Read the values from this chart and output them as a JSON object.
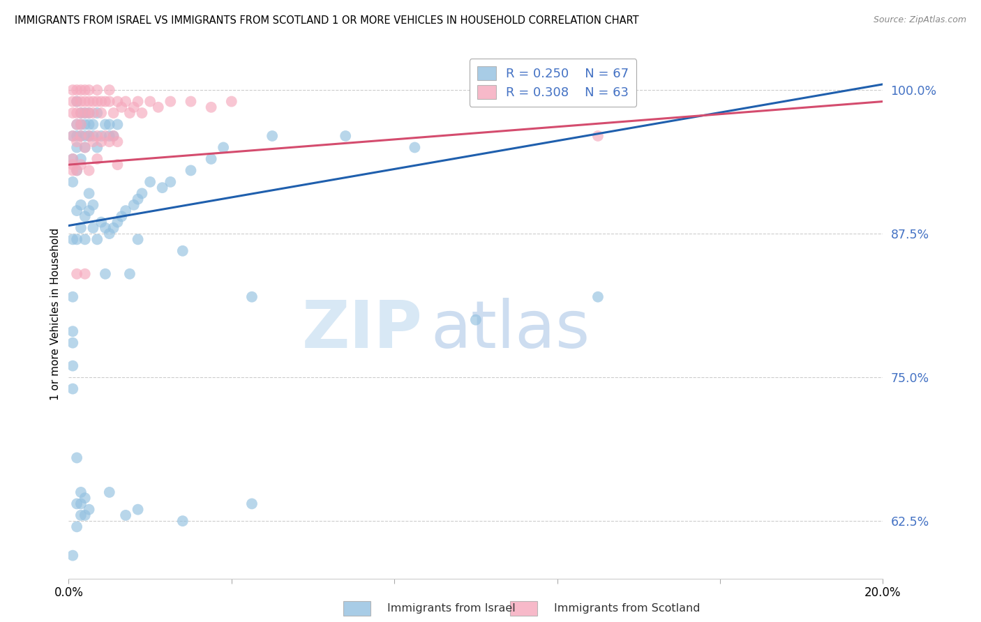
{
  "title": "IMMIGRANTS FROM ISRAEL VS IMMIGRANTS FROM SCOTLAND 1 OR MORE VEHICLES IN HOUSEHOLD CORRELATION CHART",
  "source": "Source: ZipAtlas.com",
  "ylabel": "1 or more Vehicles in Household",
  "xlim": [
    0.0,
    0.2
  ],
  "ylim": [
    0.575,
    1.035
  ],
  "y_ticks": [
    0.625,
    0.75,
    0.875,
    1.0
  ],
  "y_tick_labels": [
    "62.5%",
    "75.0%",
    "87.5%",
    "100.0%"
  ],
  "legend_israel": "Immigrants from Israel",
  "legend_scotland": "Immigrants from Scotland",
  "R_israel": 0.25,
  "N_israel": 67,
  "R_scotland": 0.308,
  "N_scotland": 63,
  "color_israel": "#92C0E0",
  "color_scotland": "#F5A8BC",
  "trendline_color_israel": "#1F5FAD",
  "trendline_color_scotland": "#D44C6E",
  "israel_x": [
    0.001,
    0.001,
    0.001,
    0.001,
    0.002,
    0.002,
    0.002,
    0.002,
    0.002,
    0.003,
    0.003,
    0.003,
    0.003,
    0.004,
    0.004,
    0.004,
    0.004,
    0.005,
    0.005,
    0.005,
    0.006,
    0.006,
    0.007,
    0.007,
    0.008,
    0.009,
    0.01,
    0.01,
    0.011,
    0.012,
    0.002,
    0.003,
    0.004,
    0.005,
    0.006,
    0.002,
    0.003,
    0.004,
    0.005,
    0.006,
    0.007,
    0.008,
    0.009,
    0.01,
    0.011,
    0.012,
    0.013,
    0.014,
    0.016,
    0.017,
    0.018,
    0.02,
    0.023,
    0.025,
    0.03,
    0.035,
    0.038,
    0.05,
    0.068,
    0.085,
    0.009,
    0.015,
    0.017,
    0.028,
    0.045,
    0.13,
    0.1
  ],
  "israel_y": [
    0.96,
    0.94,
    0.92,
    0.87,
    0.99,
    0.97,
    0.96,
    0.95,
    0.93,
    0.98,
    0.97,
    0.96,
    0.94,
    0.98,
    0.97,
    0.96,
    0.95,
    0.98,
    0.97,
    0.96,
    0.97,
    0.96,
    0.98,
    0.95,
    0.96,
    0.97,
    0.97,
    0.96,
    0.96,
    0.97,
    0.895,
    0.9,
    0.89,
    0.91,
    0.9,
    0.87,
    0.88,
    0.87,
    0.895,
    0.88,
    0.87,
    0.885,
    0.88,
    0.875,
    0.88,
    0.885,
    0.89,
    0.895,
    0.9,
    0.905,
    0.91,
    0.92,
    0.915,
    0.92,
    0.93,
    0.94,
    0.95,
    0.96,
    0.96,
    0.95,
    0.84,
    0.84,
    0.87,
    0.86,
    0.82,
    0.82,
    0.8
  ],
  "israel_y_low": [
    0.82,
    0.79,
    0.78,
    0.76,
    0.74,
    0.68,
    0.64,
    0.62,
    0.595,
    0.63,
    0.64,
    0.65,
    0.63,
    0.645,
    0.635,
    0.65,
    0.63,
    0.635,
    0.625,
    0.64
  ],
  "israel_x_low": [
    0.001,
    0.001,
    0.001,
    0.001,
    0.001,
    0.002,
    0.002,
    0.002,
    0.001,
    0.003,
    0.003,
    0.003,
    0.004,
    0.004,
    0.005,
    0.01,
    0.014,
    0.017,
    0.028,
    0.045
  ],
  "scotland_x": [
    0.001,
    0.001,
    0.001,
    0.002,
    0.002,
    0.002,
    0.002,
    0.003,
    0.003,
    0.003,
    0.003,
    0.004,
    0.004,
    0.004,
    0.005,
    0.005,
    0.005,
    0.006,
    0.006,
    0.007,
    0.007,
    0.008,
    0.008,
    0.009,
    0.01,
    0.01,
    0.011,
    0.012,
    0.013,
    0.014,
    0.015,
    0.016,
    0.017,
    0.018,
    0.02,
    0.022,
    0.025,
    0.03,
    0.035,
    0.04,
    0.001,
    0.002,
    0.003,
    0.004,
    0.005,
    0.006,
    0.007,
    0.008,
    0.009,
    0.01,
    0.011,
    0.012,
    0.001,
    0.001,
    0.001,
    0.002,
    0.003,
    0.005,
    0.007,
    0.012,
    0.002,
    0.004,
    0.13
  ],
  "scotland_y": [
    1.0,
    0.99,
    0.98,
    1.0,
    0.99,
    0.98,
    0.97,
    1.0,
    0.99,
    0.98,
    0.97,
    1.0,
    0.99,
    0.98,
    1.0,
    0.99,
    0.98,
    0.99,
    0.98,
    1.0,
    0.99,
    0.99,
    0.98,
    0.99,
    1.0,
    0.99,
    0.98,
    0.99,
    0.985,
    0.99,
    0.98,
    0.985,
    0.99,
    0.98,
    0.99,
    0.985,
    0.99,
    0.99,
    0.985,
    0.99,
    0.96,
    0.955,
    0.96,
    0.95,
    0.96,
    0.955,
    0.96,
    0.955,
    0.96,
    0.955,
    0.96,
    0.955,
    0.94,
    0.93,
    0.935,
    0.93,
    0.935,
    0.93,
    0.94,
    0.935,
    0.84,
    0.84,
    0.96
  ],
  "trendline_israel_x0": 0.0,
  "trendline_israel_y0": 0.882,
  "trendline_israel_x1": 0.2,
  "trendline_israel_y1": 1.005,
  "trendline_scotland_x0": 0.0,
  "trendline_scotland_y0": 0.935,
  "trendline_scotland_x1": 0.2,
  "trendline_scotland_y1": 0.99
}
